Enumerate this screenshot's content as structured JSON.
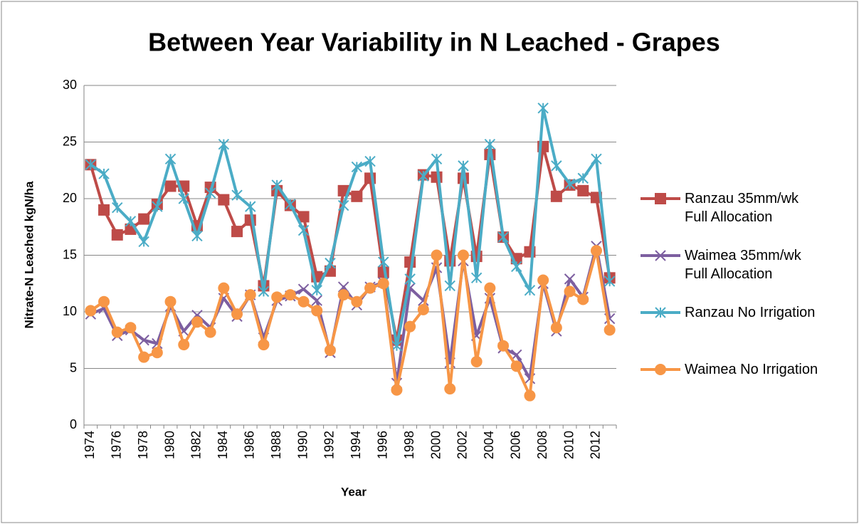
{
  "chart_data": {
    "type": "line",
    "title": "Between Year Variability in N Leached - Grapes",
    "xlabel": "Year",
    "ylabel": "Nitrate-N Leached kgN/ha",
    "categories": [
      1974,
      null,
      1976,
      null,
      1978,
      null,
      1980,
      null,
      1982,
      null,
      1984,
      null,
      1986,
      null,
      1988,
      null,
      1990,
      null,
      1992,
      null,
      1994,
      null,
      1996,
      null,
      1998,
      null,
      2000,
      null,
      2002,
      null,
      2004,
      null,
      2006,
      null,
      2008,
      null,
      2010,
      null,
      2012,
      null
    ],
    "ylim": [
      0,
      30
    ],
    "yticks": [
      0,
      5,
      10,
      15,
      20,
      25,
      30
    ],
    "grid": true,
    "legend": "right",
    "series": [
      {
        "name": "Ranzau 35mm/wk\nFull Allocation",
        "color": "#be4b48",
        "marker": "square",
        "values": [
          23,
          19,
          16.8,
          17.3,
          18.2,
          19.5,
          21.1,
          21.1,
          17.6,
          21,
          19.9,
          17.1,
          18.1,
          12.3,
          20.7,
          19.4,
          18.4,
          13.1,
          13.6,
          20.7,
          20.2,
          21.8,
          13.5,
          7.5,
          14.4,
          22.1,
          21.9,
          14.5,
          21.8,
          14.9,
          23.9,
          16.6,
          14.7,
          15.3,
          24.6,
          20.2,
          21.2,
          20.7,
          20.1,
          13
        ]
      },
      {
        "name": "Waimea 35mm/wk\nFull Allocation",
        "color": "#7d5fa0",
        "marker": "x",
        "values": [
          9.8,
          10.3,
          7.9,
          8.4,
          7.5,
          7.2,
          10.5,
          8.3,
          9.7,
          8.6,
          11.2,
          9.6,
          11.5,
          7.7,
          11,
          11.4,
          12,
          11,
          6.4,
          12.2,
          10.6,
          12.2,
          12.6,
          3.7,
          12.1,
          11,
          13.9,
          5.5,
          14.5,
          7.9,
          11.2,
          6.8,
          6.2,
          4.1,
          12.5,
          8.3,
          12.9,
          11.3,
          15.8,
          9.4
        ]
      },
      {
        "name": "Ranzau No Irrigation",
        "color": "#4bacc6",
        "marker": "star",
        "values": [
          23,
          22.2,
          19.2,
          18,
          16.2,
          19.3,
          23.5,
          20,
          16.7,
          20.5,
          24.8,
          20.3,
          19.3,
          11.8,
          21.2,
          19.5,
          17.2,
          11.9,
          14.3,
          19.4,
          22.8,
          23.3,
          14.4,
          7,
          12.9,
          22,
          23.5,
          12.3,
          22.9,
          13,
          24.8,
          16.6,
          14,
          11.9,
          28,
          22.9,
          21.3,
          21.8,
          23.5,
          12.7
        ]
      },
      {
        "name": "Waimea No Irrigation",
        "color": "#f79646",
        "marker": "circle",
        "values": [
          10.1,
          10.9,
          8.2,
          8.6,
          6,
          6.4,
          10.9,
          7.1,
          9.1,
          8.2,
          12.1,
          9.8,
          11.5,
          7.1,
          11.3,
          11.5,
          10.9,
          10.1,
          6.6,
          11.5,
          10.9,
          12.1,
          12.5,
          3.1,
          8.7,
          10.2,
          15,
          3.2,
          15,
          5.6,
          12.1,
          7,
          5.2,
          2.6,
          12.8,
          8.6,
          11.8,
          11.1,
          15.4,
          8.4
        ]
      }
    ]
  }
}
